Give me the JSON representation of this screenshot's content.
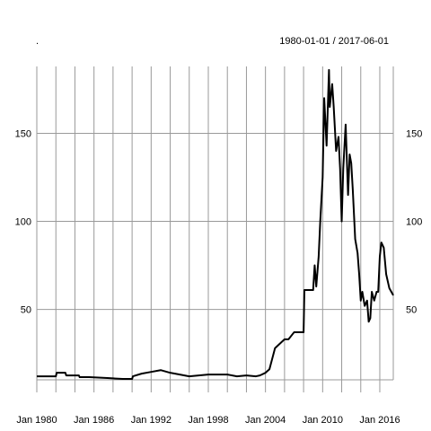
{
  "chart_data": {
    "type": "line",
    "title": ".",
    "subtitle": "1980-01-01 / 2017-06-01",
    "xlabel": "",
    "ylabel": "",
    "x_ticks": [
      "Jan 1980",
      "Jan 1986",
      "Jan 1992",
      "Jan 1998",
      "Jan 2004",
      "Jan 2010",
      "Jan 2016"
    ],
    "x_range": [
      "1980-01-01",
      "2017-06-01"
    ],
    "y_ticks_left": [
      50,
      100,
      150
    ],
    "y_ticks_right": [
      50,
      100,
      150
    ],
    "ylim": [
      10,
      188
    ],
    "grid": true,
    "line_color": "#000000",
    "grid_color": "#999999",
    "series": [
      {
        "values": [
          [
            "1980-01-01",
            12
          ],
          [
            "1982-01-01",
            12
          ],
          [
            "1982-02-01",
            14
          ],
          [
            "1983-01-01",
            14
          ],
          [
            "1983-02-01",
            12.5
          ],
          [
            "1984-06-01",
            12.5
          ],
          [
            "1984-07-01",
            11.5
          ],
          [
            "1985-06-01",
            11.5
          ],
          [
            "1985-07-01",
            11.5
          ],
          [
            "1987-06-01",
            11
          ],
          [
            "1989-01-01",
            10.5
          ],
          [
            "1990-01-01",
            10.5
          ],
          [
            "1990-02-01",
            12
          ],
          [
            "1991-01-01",
            13.5
          ],
          [
            "1992-01-01",
            14.5
          ],
          [
            "1993-01-01",
            15.5
          ],
          [
            "1994-01-01",
            14
          ],
          [
            "1995-01-01",
            13
          ],
          [
            "1996-01-01",
            12
          ],
          [
            "1997-01-01",
            12.5
          ],
          [
            "1998-01-01",
            13
          ],
          [
            "2000-01-01",
            13
          ],
          [
            "2001-01-01",
            12
          ],
          [
            "2002-01-01",
            12.5
          ],
          [
            "2003-01-01",
            12
          ],
          [
            "2003-06-01",
            12.5
          ],
          [
            "2004-01-01",
            14
          ],
          [
            "2004-06-01",
            16
          ],
          [
            "2005-01-01",
            28
          ],
          [
            "2006-01-01",
            33
          ],
          [
            "2006-06-01",
            33
          ],
          [
            "2007-01-01",
            37
          ],
          [
            "2008-01-01",
            37
          ],
          [
            "2008-02-01",
            61
          ],
          [
            "2009-01-01",
            61
          ],
          [
            "2009-03-01",
            75
          ],
          [
            "2009-05-01",
            63
          ],
          [
            "2009-08-01",
            80
          ],
          [
            "2009-10-01",
            100
          ],
          [
            "2010-01-01",
            125
          ],
          [
            "2010-03-01",
            170
          ],
          [
            "2010-06-01",
            143
          ],
          [
            "2010-09-01",
            186
          ],
          [
            "2010-10-01",
            165
          ],
          [
            "2011-01-01",
            178
          ],
          [
            "2011-03-01",
            165
          ],
          [
            "2011-06-01",
            140
          ],
          [
            "2011-09-01",
            148
          ],
          [
            "2011-11-01",
            130
          ],
          [
            "2012-01-01",
            100
          ],
          [
            "2012-03-01",
            130
          ],
          [
            "2012-06-01",
            155
          ],
          [
            "2012-09-01",
            115
          ],
          [
            "2012-11-01",
            138
          ],
          [
            "2013-01-01",
            133
          ],
          [
            "2013-03-01",
            118
          ],
          [
            "2013-06-01",
            90
          ],
          [
            "2013-09-01",
            82
          ],
          [
            "2013-11-01",
            70
          ],
          [
            "2014-01-01",
            55
          ],
          [
            "2014-03-01",
            60
          ],
          [
            "2014-06-01",
            52
          ],
          [
            "2014-09-01",
            55
          ],
          [
            "2014-11-01",
            43
          ],
          [
            "2015-01-01",
            45
          ],
          [
            "2015-03-01",
            60
          ],
          [
            "2015-06-01",
            55
          ],
          [
            "2015-09-01",
            60
          ],
          [
            "2015-11-01",
            60
          ],
          [
            "2016-01-01",
            80
          ],
          [
            "2016-03-01",
            88
          ],
          [
            "2016-06-01",
            85
          ],
          [
            "2016-09-01",
            70
          ],
          [
            "2017-01-01",
            62
          ],
          [
            "2017-06-01",
            58
          ]
        ]
      }
    ]
  }
}
